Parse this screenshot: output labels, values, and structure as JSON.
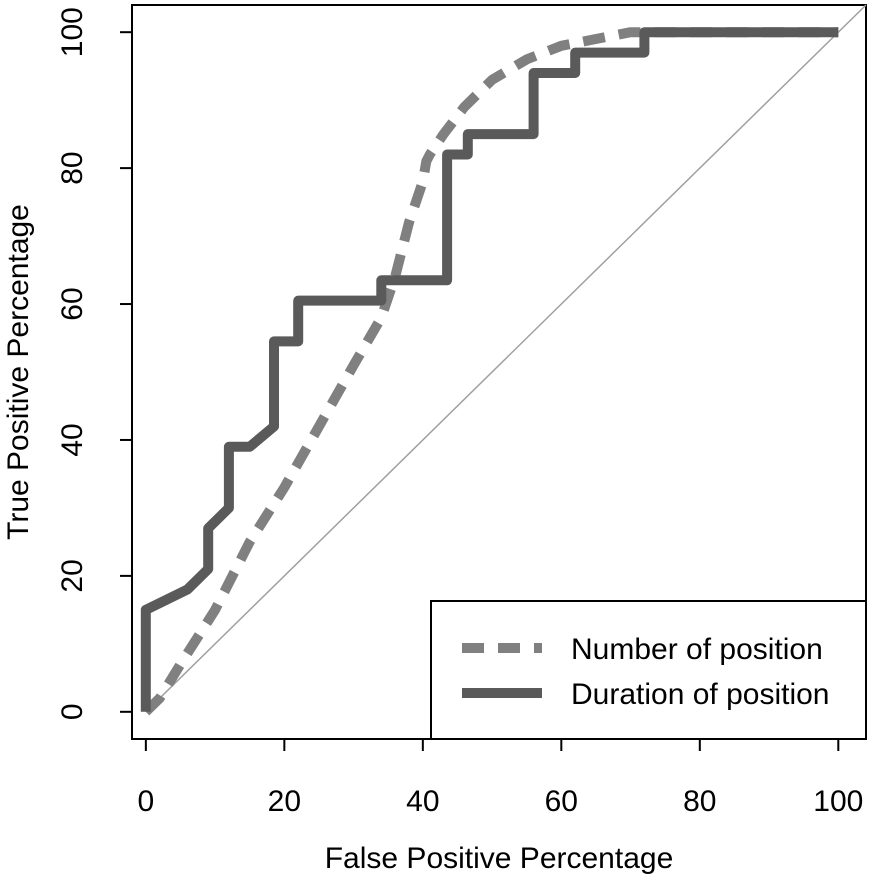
{
  "chart_data": {
    "type": "line",
    "title": "",
    "xlabel": "False Positive Percentage",
    "ylabel": "True Positive Percentage",
    "xlim": [
      -2,
      104
    ],
    "ylim": [
      -4,
      104
    ],
    "x_ticks": [
      0,
      20,
      40,
      60,
      80,
      100
    ],
    "y_ticks": [
      0,
      20,
      40,
      60,
      80,
      100
    ],
    "x_tick_labels": [
      "0",
      "20",
      "40",
      "60",
      "80",
      "100"
    ],
    "y_tick_labels": [
      "0",
      "20",
      "40",
      "60",
      "80",
      "100"
    ],
    "grid": false,
    "legend_position": "bottom-right",
    "reference_line": {
      "x": [
        0,
        104
      ],
      "y": [
        0,
        104
      ],
      "color": "#a0a0a0"
    },
    "series": [
      {
        "name": "Number of position",
        "style": "dashed",
        "color": "#808080",
        "x": [
          0,
          2,
          5,
          10,
          15,
          20,
          25,
          30,
          34,
          36,
          38,
          40,
          40.5,
          41,
          43,
          46,
          50,
          55,
          60,
          65,
          70,
          72,
          100
        ],
        "y": [
          0,
          2,
          7,
          15,
          25,
          33,
          42,
          51,
          58,
          64,
          72,
          78,
          81,
          82,
          85,
          89,
          93,
          96,
          98,
          99,
          100,
          100,
          100
        ]
      },
      {
        "name": "Duration of position",
        "style": "solid",
        "color": "#5a5a5a",
        "x": [
          0,
          0,
          6,
          9,
          9,
          12,
          12,
          15,
          18.5,
          18.5,
          22,
          22,
          34,
          34,
          43.5,
          43.5,
          46.5,
          46.5,
          56,
          56,
          62,
          62,
          72,
          72,
          100
        ],
        "y": [
          0,
          15,
          18,
          21,
          27,
          30,
          39,
          39,
          42,
          54.5,
          54.5,
          60.5,
          60.5,
          63.5,
          63.5,
          82,
          82,
          85,
          85,
          94,
          94,
          97,
          97,
          100,
          100
        ]
      }
    ]
  }
}
